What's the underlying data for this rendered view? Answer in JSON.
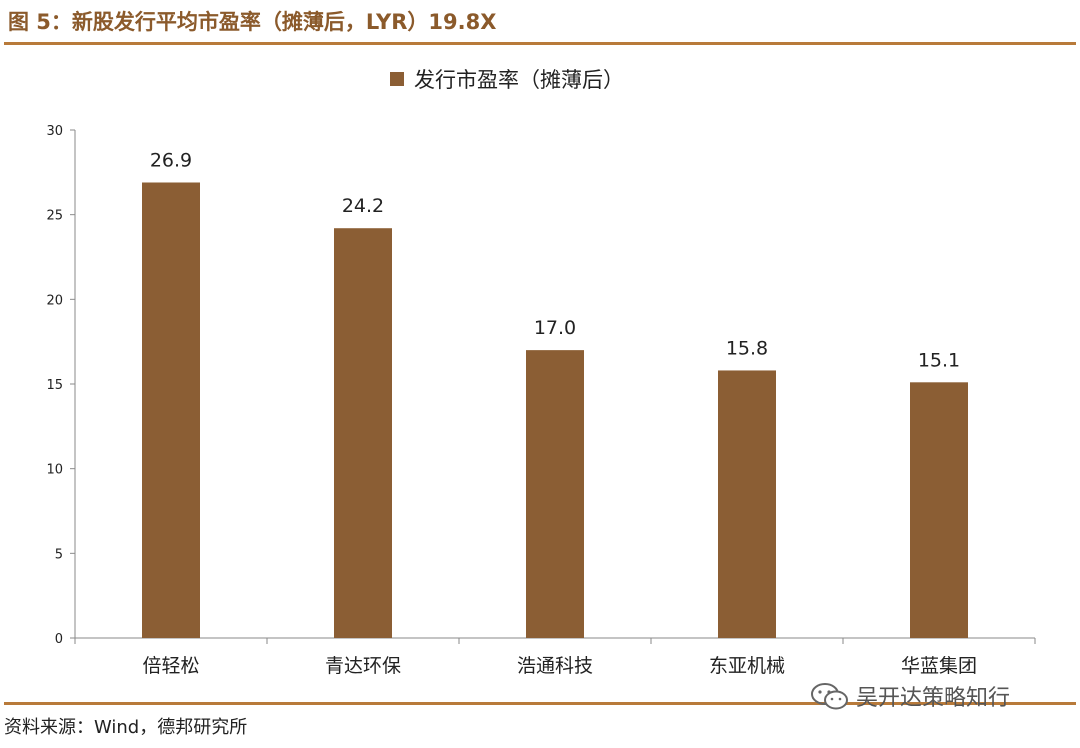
{
  "header": {
    "figure_title": "图 5：新股发行平均市盈率（摊薄后，LYR）19.8X"
  },
  "footer": {
    "source": "资料来源：Wind，德邦研究所",
    "watermark": "吴开达策略知行",
    "watermark_icon": "wechat-icon"
  },
  "colors": {
    "bar": "#8b5e34",
    "title": "#8b5a2b",
    "rule": "#b87a3a"
  },
  "chart_data": {
    "type": "bar",
    "title": "",
    "legend": [
      "发行市盈率（摊薄后）"
    ],
    "legend_position": "top-center",
    "categories": [
      "倍轻松",
      "青达环保",
      "浩通科技",
      "东亚机械",
      "华蓝集团"
    ],
    "series": [
      {
        "name": "发行市盈率（摊薄后）",
        "values": [
          26.9,
          24.2,
          17.0,
          15.8,
          15.1
        ],
        "labels": [
          "26.9",
          "24.2",
          "17.0",
          "15.8",
          "15.1"
        ]
      }
    ],
    "xlabel": "",
    "ylabel": "",
    "ylim": [
      0,
      30
    ],
    "yticks": [
      0,
      5,
      10,
      15,
      20,
      25,
      30
    ],
    "grid": false
  }
}
